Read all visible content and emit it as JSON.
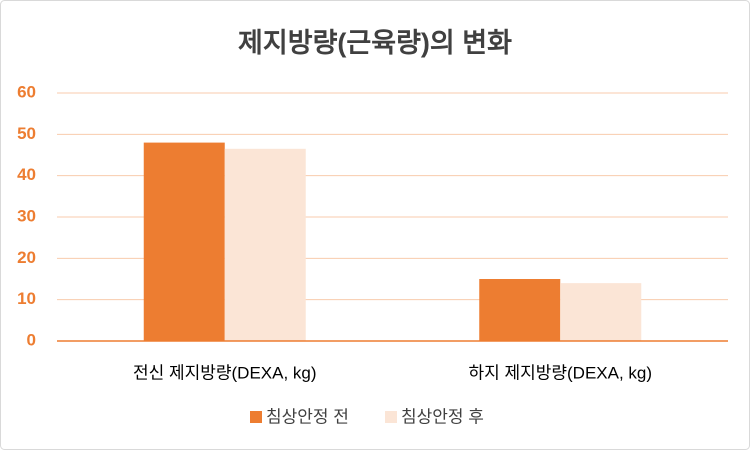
{
  "chart_data": {
    "type": "bar",
    "title": "제지방량(근육량)의 변화",
    "categories": [
      "전신 제지방량(DEXA, kg)",
      "하지 제지방량(DEXA, kg)"
    ],
    "series": [
      {
        "name": "침상안정 전",
        "color": "#ED7D31",
        "values": [
          48,
          15
        ]
      },
      {
        "name": "침상안정 후",
        "color": "#FBE5D6",
        "values": [
          46.5,
          14
        ]
      }
    ],
    "ylim": [
      0,
      60
    ],
    "yticks": [
      0,
      10,
      20,
      30,
      40,
      50,
      60
    ],
    "grid": true,
    "legend": "bottom"
  }
}
